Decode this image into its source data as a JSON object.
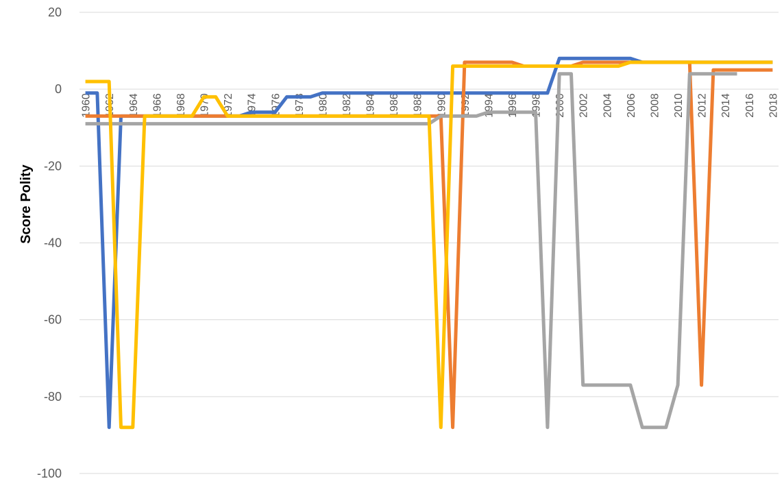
{
  "chart_data": {
    "type": "line",
    "title": "",
    "xlabel": "",
    "ylabel": "Score Polity",
    "ylim": [
      -100,
      20
    ],
    "yticks": [
      20,
      0,
      -20,
      -40,
      -60,
      -80,
      -100
    ],
    "xticks": [
      "1960",
      "1962",
      "1964",
      "1966",
      "1968",
      "1970",
      "1972",
      "1974",
      "1976",
      "1978",
      "1980",
      "1982",
      "1984",
      "1986",
      "1988",
      "1990",
      "1992",
      "1994",
      "1996",
      "1998",
      "2000",
      "2002",
      "2004",
      "2006",
      "2008",
      "2010",
      "2012",
      "2014",
      "2016",
      "2018"
    ],
    "x": [
      1960,
      1961,
      1962,
      1963,
      1964,
      1965,
      1966,
      1967,
      1968,
      1969,
      1970,
      1971,
      1972,
      1973,
      1974,
      1975,
      1976,
      1977,
      1978,
      1979,
      1980,
      1981,
      1982,
      1983,
      1984,
      1985,
      1986,
      1987,
      1988,
      1989,
      1990,
      1991,
      1992,
      1993,
      1994,
      1995,
      1996,
      1997,
      1998,
      1999,
      2000,
      2001,
      2002,
      2003,
      2004,
      2005,
      2006,
      2007,
      2008,
      2009,
      2010,
      2011,
      2012,
      2013,
      2014,
      2015,
      2016,
      2017,
      2018
    ],
    "grid": true,
    "legend": "none",
    "series": [
      {
        "color": "#4472c4",
        "values": [
          -1,
          -1,
          -88,
          -7,
          -7,
          -7,
          -7,
          -7,
          -7,
          -7,
          -7,
          -7,
          -7,
          -7,
          -6,
          -6,
          -6,
          -2,
          -2,
          -2,
          -1,
          -1,
          -1,
          -1,
          -1,
          -1,
          -1,
          -1,
          -1,
          -1,
          -1,
          -1,
          -1,
          -1,
          -1,
          -1,
          -1,
          -1,
          -1,
          -1,
          8,
          8,
          8,
          8,
          8,
          8,
          8,
          7,
          7,
          7,
          7,
          7,
          7,
          7,
          7,
          7,
          7,
          7,
          7
        ]
      },
      {
        "color": "#ed7d31",
        "values": [
          -7,
          -7,
          -7,
          -7,
          -7,
          -7,
          -7,
          -7,
          -7,
          -7,
          -7,
          -7,
          -7,
          -7,
          -7,
          -7,
          -7,
          -7,
          -7,
          -7,
          -7,
          -7,
          -7,
          -7,
          -7,
          -7,
          -7,
          -7,
          -7,
          -7,
          -7,
          -88,
          7,
          7,
          7,
          7,
          7,
          6,
          6,
          6,
          6,
          6,
          7,
          7,
          7,
          7,
          7,
          7,
          7,
          7,
          7,
          7,
          -77,
          5,
          5,
          5,
          5,
          5,
          5
        ]
      },
      {
        "color": "#a5a5a5",
        "values": [
          -9,
          -9,
          -9,
          -9,
          -9,
          -9,
          -9,
          -9,
          -9,
          -9,
          -9,
          -9,
          -9,
          -9,
          -9,
          -9,
          -9,
          -9,
          -9,
          -9,
          -9,
          -9,
          -9,
          -9,
          -9,
          -9,
          -9,
          -9,
          -9,
          -9,
          -7,
          -7,
          -7,
          -7,
          -6,
          -6,
          -6,
          -6,
          -6,
          -88,
          4,
          4,
          -77,
          -77,
          -77,
          -77,
          -77,
          -88,
          -88,
          -88,
          -77,
          4,
          4,
          4,
          4,
          4,
          null,
          null,
          null
        ]
      },
      {
        "color": "#ffc000",
        "values": [
          2,
          2,
          2,
          -88,
          -88,
          -7,
          -7,
          -7,
          -7,
          -7,
          -2,
          -2,
          -7,
          -7,
          -7,
          -7,
          -7,
          -7,
          -7,
          -7,
          -7,
          -7,
          -7,
          -7,
          -7,
          -7,
          -7,
          -7,
          -7,
          -7,
          -88,
          6,
          6,
          6,
          6,
          6,
          6,
          6,
          6,
          6,
          6,
          6,
          6,
          6,
          6,
          6,
          7,
          7,
          7,
          7,
          7,
          7,
          7,
          7,
          7,
          7,
          7,
          7,
          7
        ]
      }
    ]
  }
}
